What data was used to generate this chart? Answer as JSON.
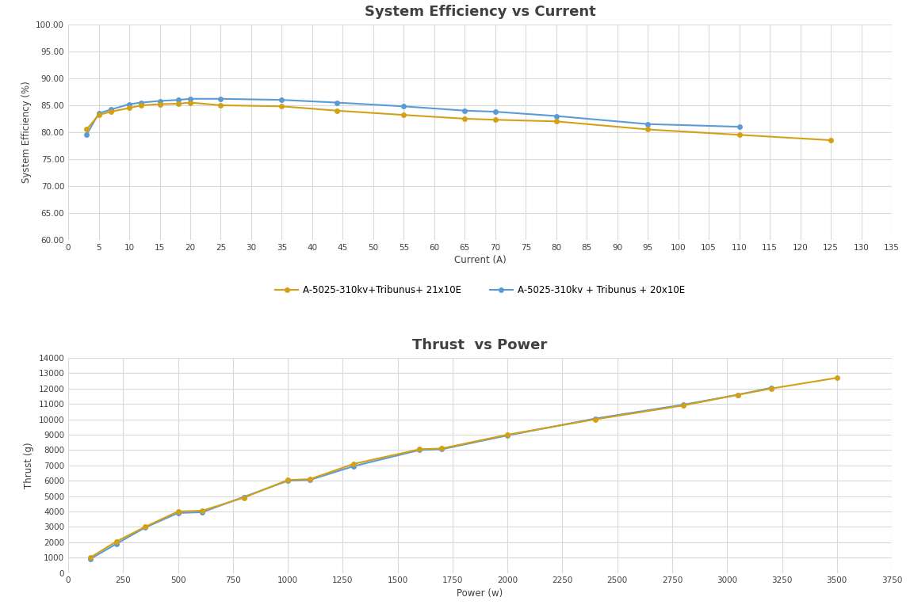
{
  "title1": "System Efficiency vs Current",
  "title2": "Thrust  vs Power",
  "xlabel1": "Current (A)",
  "ylabel1": "System Efficiency (%)",
  "xlabel2": "Power (w)",
  "ylabel2": "Thrust (g)",
  "legend1_yellow": "A-5025-310kv+Tribunus+ 21x10E",
  "legend1_blue": "A-5025-310kv + Tribunus + 20x10E",
  "legend2_yellow": "A-5025-310kv+Tribunus+ 21x10E",
  "legend2_blue": "A-5025-310kv+ Tribunus +20x10E",
  "eff_ylim": [
    60,
    100
  ],
  "eff_xlim": [
    0,
    135
  ],
  "thrust_ylim": [
    0,
    14000
  ],
  "thrust_xlim": [
    0,
    3750
  ],
  "color_yellow": "#D4A017",
  "color_blue": "#5B9BD5",
  "background": "#FFFFFF",
  "grid_color": "#D9D9D9",
  "fig_background": "#FFFFFF",
  "eff_yellow_x": [
    3,
    5,
    7,
    10,
    12,
    15,
    18,
    20,
    25,
    35,
    44,
    55,
    65,
    70,
    80,
    95,
    110,
    125
  ],
  "eff_yellow_y": [
    80.5,
    83.2,
    83.8,
    84.5,
    85.0,
    85.2,
    85.3,
    85.5,
    85.0,
    84.8,
    84.0,
    83.2,
    82.5,
    82.3,
    82.0,
    80.5,
    79.5,
    78.5
  ],
  "eff_blue_x": [
    3,
    5,
    7,
    10,
    12,
    15,
    18,
    20,
    25,
    35,
    44,
    55,
    65,
    70,
    80,
    95,
    110
  ],
  "eff_blue_y": [
    79.5,
    83.5,
    84.2,
    85.2,
    85.5,
    85.8,
    86.0,
    86.2,
    86.2,
    86.0,
    85.5,
    84.8,
    84.0,
    83.8,
    83.0,
    81.5,
    81.0
  ],
  "thrust_yellow_x": [
    100,
    220,
    350,
    500,
    610,
    800,
    1000,
    1100,
    1300,
    1600,
    1700,
    2000,
    2400,
    2800,
    3050,
    3200,
    3500
  ],
  "thrust_yellow_y": [
    1000,
    2050,
    3000,
    4000,
    4050,
    4900,
    6050,
    6100,
    7100,
    8050,
    8100,
    9000,
    10000,
    10900,
    11600,
    12000,
    12700
  ],
  "thrust_blue_x": [
    100,
    220,
    350,
    500,
    610,
    800,
    1000,
    1100,
    1300,
    1600,
    1700,
    2000,
    2400,
    2800,
    3050,
    3200
  ],
  "thrust_blue_y": [
    900,
    1900,
    2950,
    3900,
    3950,
    4950,
    6000,
    6050,
    6950,
    8000,
    8050,
    8950,
    10050,
    10950,
    11600,
    12050
  ]
}
